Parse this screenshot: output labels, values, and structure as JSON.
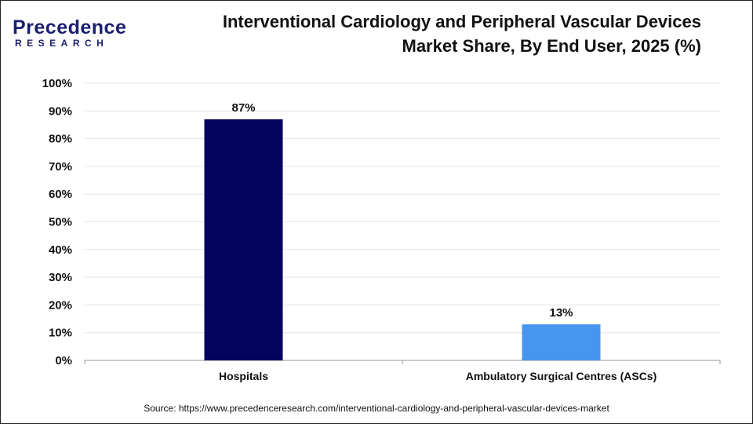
{
  "logo": {
    "line1": "Precedence",
    "line2": "RESEARCH"
  },
  "title_lines": [
    "Interventional Cardiology and Peripheral Vascular Devices",
    "Market Share, By End User, 2025 (%)"
  ],
  "source": "Source: https://www.precedenceresearch.com/interventional-cardiology-and-peripheral-vascular-devices-market",
  "chart_data": {
    "type": "bar",
    "title": "Interventional Cardiology and Peripheral Vascular Devices Market Share, By End User, 2025 (%)",
    "categories": [
      "Hospitals",
      "Ambulatory Surgical Centres (ASCs)"
    ],
    "values": [
      87,
      13
    ],
    "data_labels": [
      "87%",
      "13%"
    ],
    "colors": [
      "#03045e",
      "#4895ef"
    ],
    "ylim": [
      0,
      100
    ],
    "yticks": [
      "0%",
      "10%",
      "20%",
      "30%",
      "40%",
      "50%",
      "60%",
      "70%",
      "80%",
      "90%",
      "100%"
    ],
    "grid": true,
    "xlabel": "",
    "ylabel": ""
  }
}
